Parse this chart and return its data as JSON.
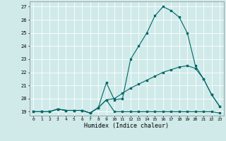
{
  "xlabel": "Humidex (Indice chaleur)",
  "background_color": "#d0eaea",
  "grid_color": "#ffffff",
  "line_color": "#006666",
  "x_all": [
    0,
    1,
    2,
    3,
    4,
    5,
    6,
    7,
    8,
    9,
    10,
    11,
    12,
    13,
    14,
    15,
    16,
    17,
    18,
    19,
    20,
    21,
    22,
    23
  ],
  "line1_y": [
    19,
    19,
    19,
    19.2,
    19.1,
    19.1,
    19.1,
    18.9,
    19.3,
    21.2,
    19.9,
    20.0,
    23.0,
    24.0,
    25.0,
    26.3,
    27.0,
    26.7,
    26.2,
    25.0,
    22.5,
    21.5,
    20.3,
    19.4
  ],
  "line2_y": [
    19,
    19,
    19,
    19.2,
    19.1,
    19.1,
    19.1,
    18.9,
    19.3,
    19.9,
    19.0,
    19.0,
    19.0,
    19.0,
    19.0,
    19.0,
    19.0,
    19.0,
    19.0,
    19.0,
    19.0,
    19.0,
    19.0,
    18.9
  ],
  "line3_y": [
    19,
    19,
    19,
    19.2,
    19.1,
    19.1,
    19.1,
    18.9,
    19.3,
    19.9,
    20.0,
    20.4,
    20.8,
    21.1,
    21.4,
    21.7,
    22.0,
    22.2,
    22.4,
    22.5,
    22.3,
    21.5,
    20.3,
    19.4
  ],
  "ylim": [
    18.7,
    27.4
  ],
  "xlim": [
    -0.5,
    23.5
  ],
  "yticks": [
    19,
    20,
    21,
    22,
    23,
    24,
    25,
    26,
    27
  ],
  "xticks": [
    0,
    1,
    2,
    3,
    4,
    5,
    6,
    7,
    8,
    9,
    10,
    11,
    12,
    13,
    14,
    15,
    16,
    17,
    18,
    19,
    20,
    21,
    22,
    23
  ]
}
